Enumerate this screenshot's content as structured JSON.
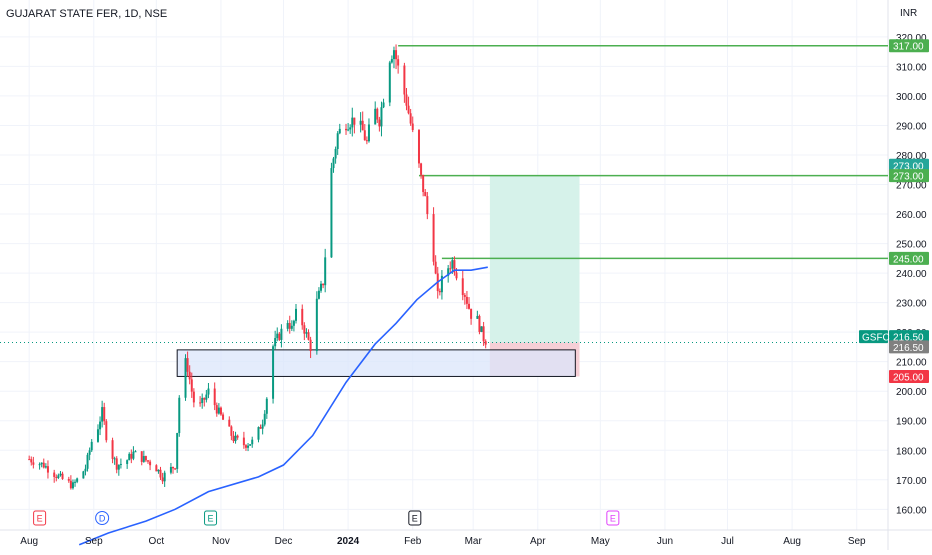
{
  "header": {
    "title": "GUJARAT STATE FER, 1D, NSE",
    "currency": "INR"
  },
  "colors": {
    "up": "#089981",
    "down": "#f23645",
    "ma": "#2962ff",
    "level": "#4caf50",
    "zone_fill": "#dbe6fb",
    "target_fill": "#d6f2ea",
    "stop_fill": "#f6cfd6",
    "grid": "#f0f3fa",
    "axis_text": "#131722"
  },
  "chart_data": {
    "type": "candlestick",
    "title": "",
    "xlabel": "",
    "ylabel": "",
    "ylim": [
      153,
      323
    ],
    "grid": true,
    "y_ticks": [
      160,
      170,
      180,
      190,
      200,
      210,
      220,
      230,
      240,
      250,
      260,
      270,
      280,
      290,
      300,
      310,
      320
    ],
    "y_tick_labels": [
      "160.00",
      "170.00",
      "180.00",
      "190.00",
      "200.00",
      "210.00",
      "220.00",
      "230.00",
      "240.00",
      "250.00",
      "260.00",
      "270.00",
      "280.00",
      "290.00",
      "300.00",
      "310.00",
      "320.00"
    ],
    "x_ticks": [
      {
        "label": "Aug",
        "d": 0
      },
      {
        "label": "Sep",
        "d": 31
      },
      {
        "label": "Oct",
        "d": 61
      },
      {
        "label": "Nov",
        "d": 92
      },
      {
        "label": "Dec",
        "d": 122
      },
      {
        "label": "2024",
        "d": 153,
        "bold": true
      },
      {
        "label": "Feb",
        "d": 184
      },
      {
        "label": "Mar",
        "d": 213
      },
      {
        "label": "Apr",
        "d": 244
      },
      {
        "label": "May",
        "d": 274
      },
      {
        "label": "Jun",
        "d": 305
      },
      {
        "label": "Jul",
        "d": 335
      },
      {
        "label": "Aug",
        "d": 366
      },
      {
        "label": "Sep",
        "d": 397
      }
    ],
    "x_range": [
      -14,
      412
    ],
    "series": [
      {
        "type": "candlestick",
        "start_date": "2023-07-25",
        "anchors": [
          [
            0,
            177
          ],
          [
            7,
            175
          ],
          [
            14,
            171
          ],
          [
            21,
            168
          ],
          [
            27,
            174
          ],
          [
            30,
            183
          ],
          [
            33,
            188
          ],
          [
            35,
            193
          ],
          [
            38,
            181
          ],
          [
            42,
            175
          ],
          [
            46,
            176
          ],
          [
            50,
            179
          ],
          [
            55,
            177
          ],
          [
            60,
            175
          ],
          [
            64,
            171
          ],
          [
            70,
            175
          ],
          [
            72,
            198
          ],
          [
            73,
            213
          ],
          [
            76,
            208
          ],
          [
            78,
            200
          ],
          [
            80,
            193
          ],
          [
            83,
            196
          ],
          [
            86,
            200
          ],
          [
            90,
            194
          ],
          [
            94,
            189
          ],
          [
            98,
            184
          ],
          [
            103,
            182
          ],
          [
            108,
            183
          ],
          [
            112,
            190
          ],
          [
            114,
            198
          ],
          [
            116,
            214
          ],
          [
            120,
            219
          ],
          [
            124,
            224
          ],
          [
            126,
            221
          ],
          [
            128,
            226
          ],
          [
            131,
            223
          ],
          [
            135,
            215
          ],
          [
            137,
            228
          ],
          [
            141,
            237
          ],
          [
            143,
            255
          ],
          [
            145,
            275
          ],
          [
            148,
            287
          ],
          [
            152,
            291
          ],
          [
            156,
            292
          ],
          [
            160,
            288
          ],
          [
            162,
            284
          ],
          [
            165,
            296
          ],
          [
            168,
            292
          ],
          [
            170,
            300
          ],
          [
            172,
            312
          ],
          [
            175,
            316
          ],
          [
            178,
            306
          ],
          [
            181,
            298
          ],
          [
            184,
            287
          ],
          [
            186,
            280
          ],
          [
            188,
            272
          ],
          [
            190,
            265
          ],
          [
            192,
            255
          ],
          [
            194,
            246
          ],
          [
            196,
            232
          ],
          [
            199,
            240
          ],
          [
            203,
            244
          ],
          [
            206,
            238
          ],
          [
            209,
            233
          ],
          [
            212,
            226
          ],
          [
            215,
            224
          ],
          [
            218,
            218
          ],
          [
            220,
            216.5
          ]
        ]
      }
    ],
    "moving_average": {
      "anchors": [
        [
          24,
          148
        ],
        [
          38,
          152
        ],
        [
          56,
          156
        ],
        [
          70,
          160
        ],
        [
          86,
          166
        ],
        [
          110,
          171
        ],
        [
          122,
          175
        ],
        [
          136,
          185
        ],
        [
          152,
          203
        ],
        [
          166,
          216
        ],
        [
          176,
          223
        ],
        [
          186,
          231
        ],
        [
          196,
          237
        ],
        [
          204,
          241
        ],
        [
          212,
          241
        ],
        [
          220,
          242
        ]
      ]
    },
    "annotations": {
      "demand_zone": {
        "x0": 71,
        "x1": 262,
        "y0": 205,
        "y1": 214,
        "note": "zone box spanning Oct 2023 to May 2024"
      },
      "target_zone": {
        "x0": 221,
        "x1": 264,
        "y0": 216.5,
        "y1": 273
      },
      "stop_zone": {
        "x0": 221,
        "x1": 264,
        "y0": 205,
        "y1": 216.5
      },
      "levels": [
        {
          "x0": 177,
          "y": 317
        },
        {
          "x0": 187,
          "y": 273
        },
        {
          "x0": 198,
          "y": 245
        }
      ],
      "last_price_line": 216.5
    },
    "price_labels": [
      {
        "label": "317.00",
        "value": 317,
        "color": "#4caf50"
      },
      {
        "label": "273.00",
        "value": 276.5,
        "color": "#26a69a"
      },
      {
        "label": "273.00",
        "value": 273,
        "color": "#4caf50"
      },
      {
        "label": "245.00",
        "value": 245,
        "color": "#4caf50"
      },
      {
        "label": "216.50",
        "value": 218.5,
        "color": "#089981",
        "tag": "GSFC"
      },
      {
        "label": "216.50",
        "value": 215,
        "color": "#808080"
      },
      {
        "label": "205.00",
        "value": 205,
        "color": "#f23645"
      }
    ],
    "events": [
      {
        "text": "E",
        "d": 5,
        "color": "#f23645"
      },
      {
        "text": "D",
        "d": 35,
        "color": "#2962ff",
        "round": true
      },
      {
        "text": "E",
        "d": 87,
        "color": "#089981"
      },
      {
        "text": "E",
        "d": 185,
        "color": "#131722"
      },
      {
        "text": "E",
        "d": 280,
        "color": "#e040fb"
      }
    ]
  }
}
